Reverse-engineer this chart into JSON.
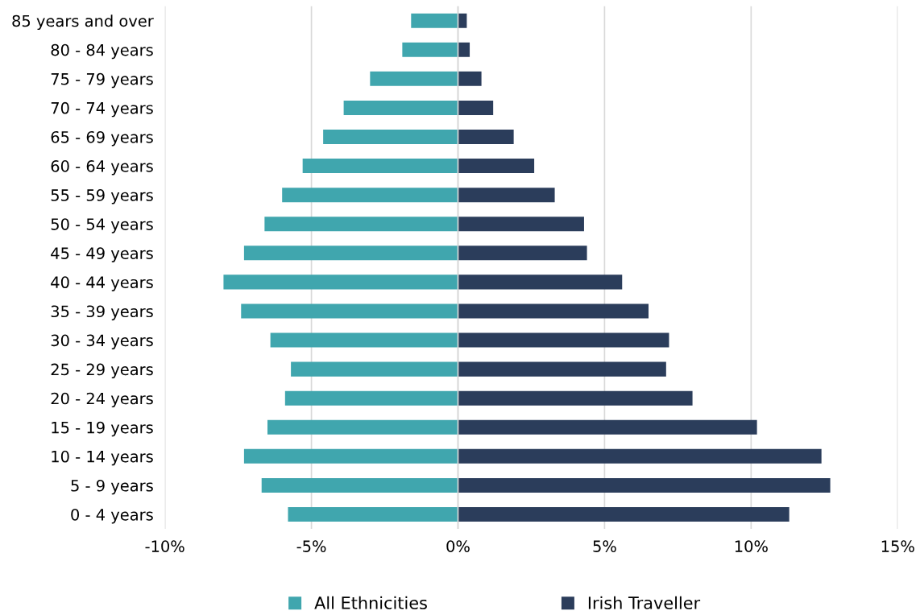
{
  "chart_data": {
    "type": "bar",
    "orientation": "horizontal",
    "stacked": true,
    "categories": [
      "85 years and over",
      "80 - 84 years",
      "75 - 79 years",
      "70 - 74 years",
      "65 - 69 years",
      "60 - 64 years",
      "55 - 59 years",
      "50 - 54 years",
      "45 - 49 years",
      "40 - 44 years",
      "35 - 39 years",
      "30 - 34 years",
      "25 - 29 years",
      "20 - 24 years",
      "15 - 19 years",
      "10 - 14 years",
      "5 - 9 years",
      "0 - 4 years"
    ],
    "series": [
      {
        "name": "All Ethnicities",
        "color": "#40a6ae",
        "values": [
          -1.6,
          -1.9,
          -3.0,
          -3.9,
          -4.6,
          -5.3,
          -6.0,
          -6.6,
          -7.3,
          -8.0,
          -7.4,
          -6.4,
          -5.7,
          -5.9,
          -6.5,
          -7.3,
          -6.7,
          -5.8
        ]
      },
      {
        "name": "Irish Traveller",
        "color": "#2b3d5b",
        "values": [
          0.3,
          0.4,
          0.8,
          1.2,
          1.9,
          2.6,
          3.3,
          4.3,
          4.4,
          5.6,
          6.5,
          7.2,
          7.1,
          8.0,
          10.2,
          12.4,
          12.7,
          11.3
        ]
      }
    ],
    "xlim": [
      -10,
      15
    ],
    "xticks": [
      {
        "value": -10,
        "label": "-10%"
      },
      {
        "value": -5,
        "label": "-5%"
      },
      {
        "value": 0,
        "label": "0%"
      },
      {
        "value": 5,
        "label": "5%"
      },
      {
        "value": 10,
        "label": "10%"
      },
      {
        "value": 15,
        "label": "15%"
      }
    ],
    "grid": "x",
    "legend": "bottom"
  }
}
